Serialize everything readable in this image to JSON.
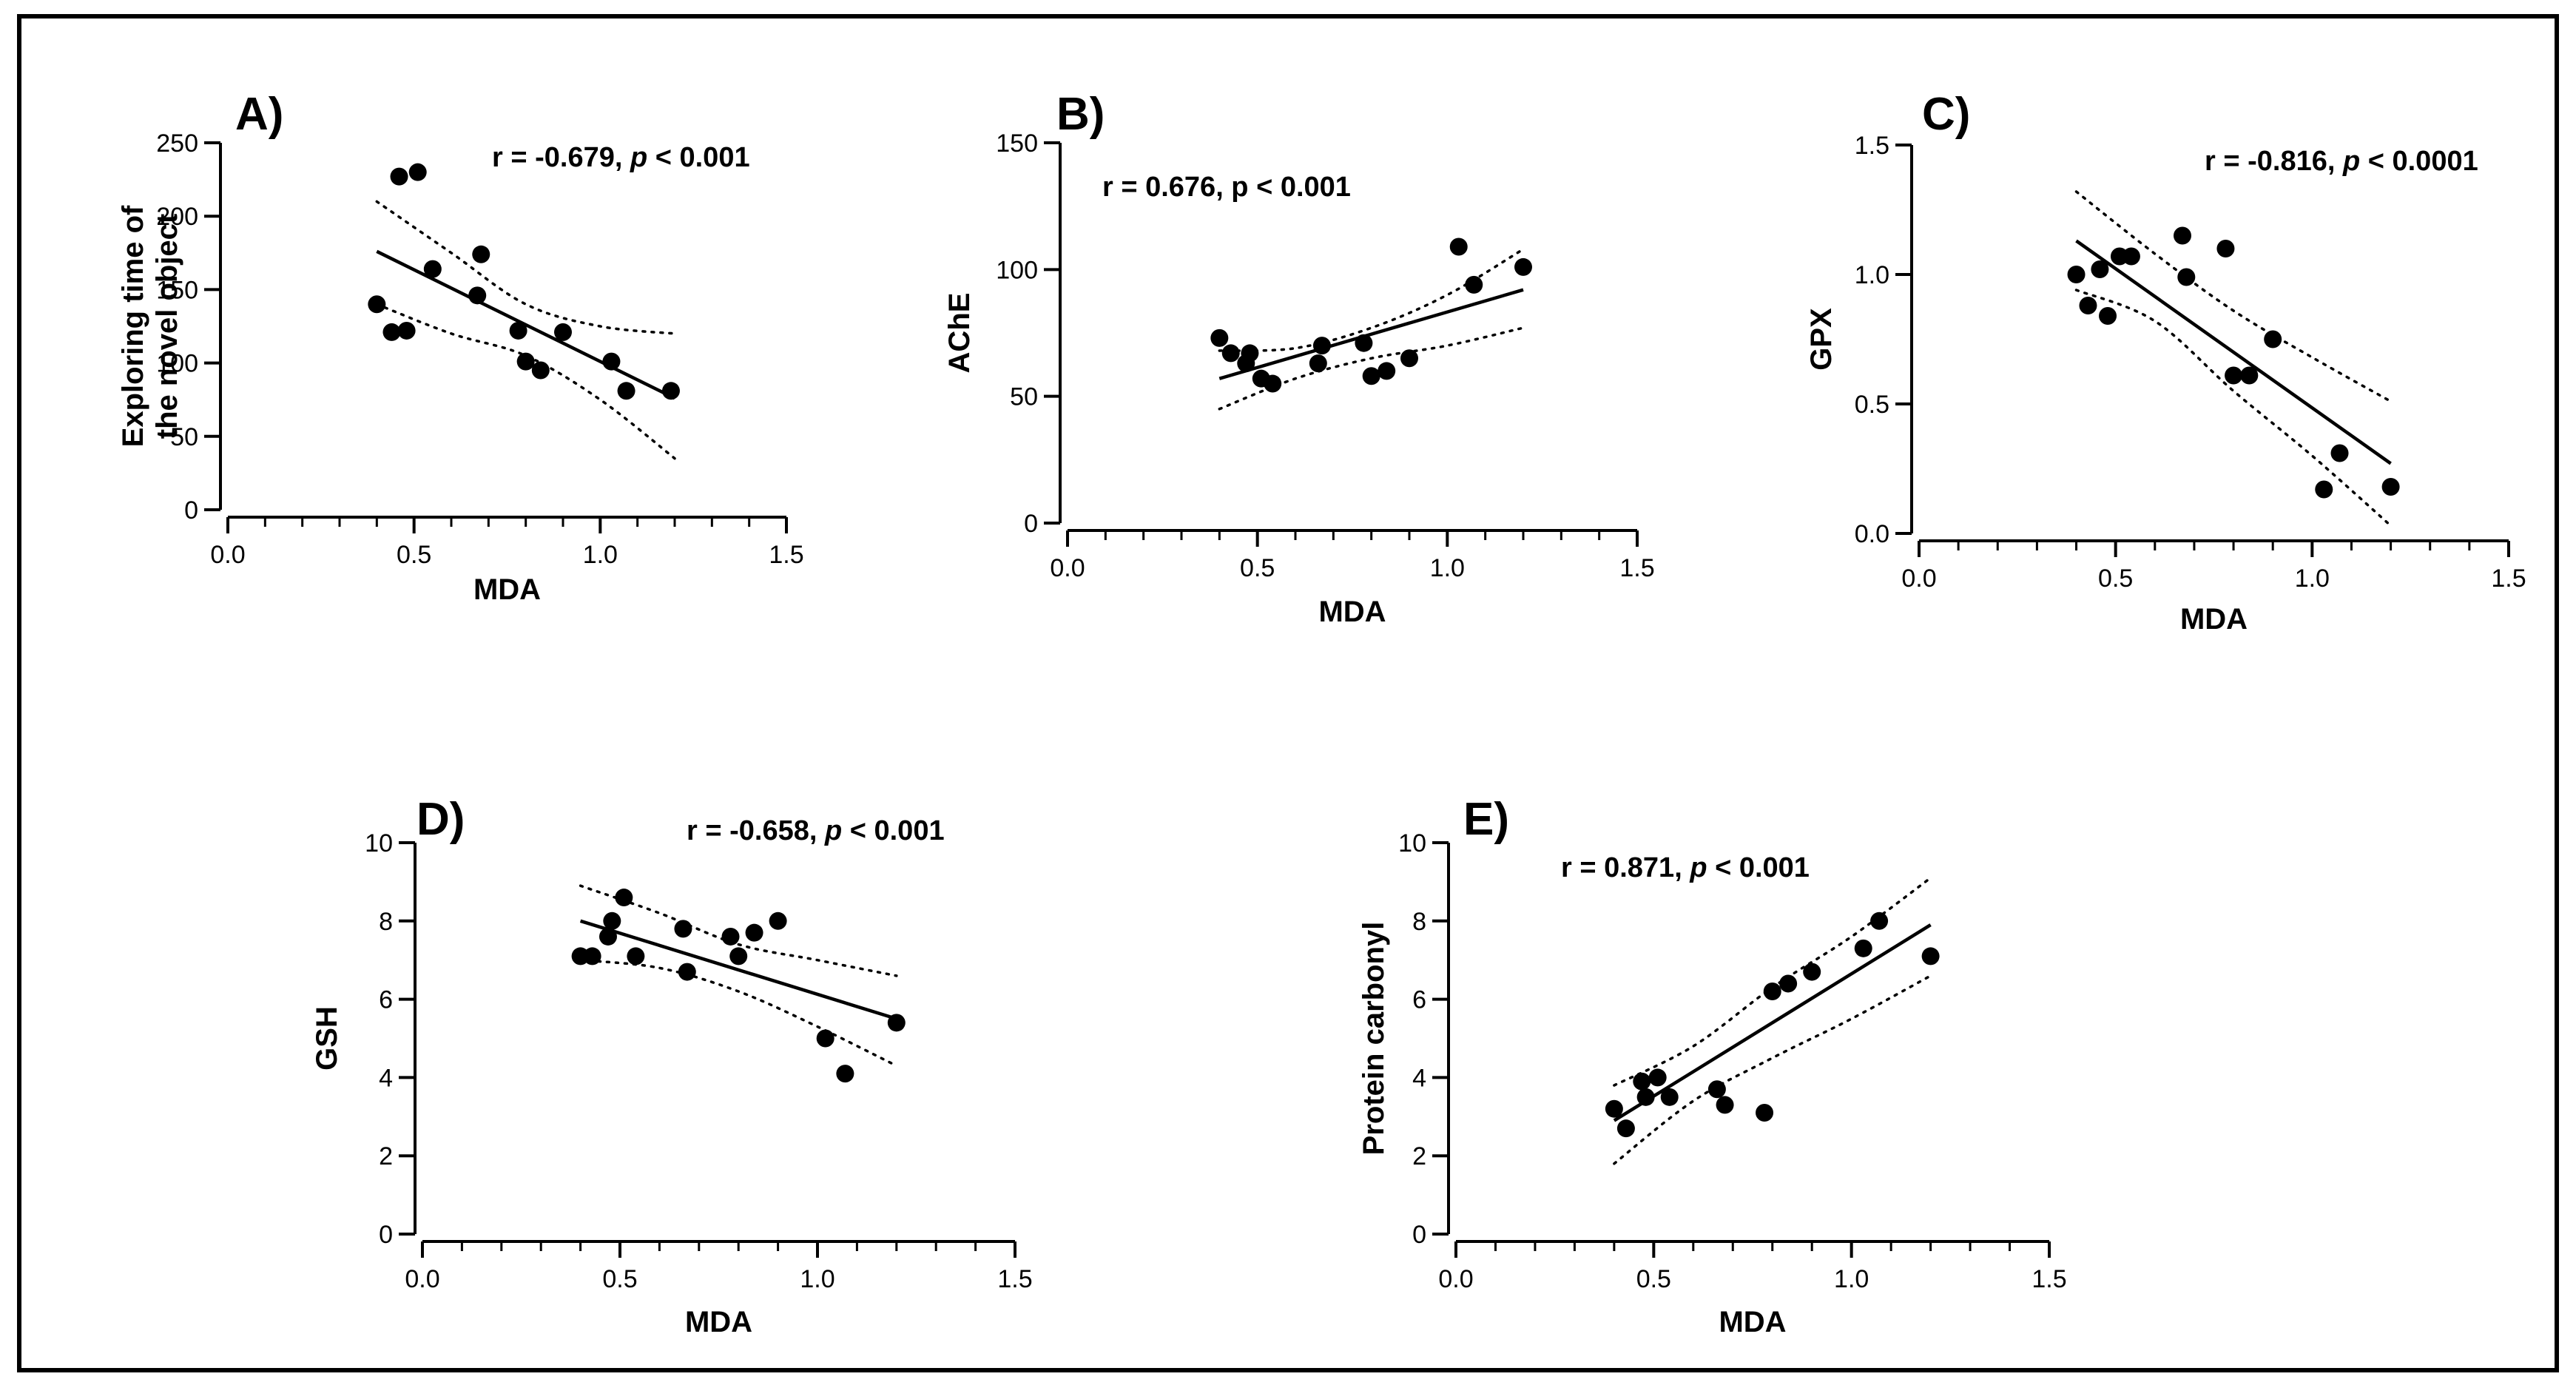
{
  "chart_data": [
    {
      "id": "A",
      "type": "scatter",
      "panel_label": "A)",
      "stat": {
        "prefix": "r = -0.679, ",
        "p_symbol": "p",
        "suffix": " < 0.001"
      },
      "xlabel": "MDA",
      "ylabel": [
        "Exploring time of",
        "the novel object"
      ],
      "xlim": [
        0,
        1.5
      ],
      "ylim": [
        0,
        250
      ],
      "xticks": [
        0,
        0.5,
        1,
        1.5
      ],
      "xtick_labels": [
        "0.0",
        "0.5",
        "1.0",
        "1.5"
      ],
      "yticks": [
        0,
        50,
        100,
        150,
        200,
        250
      ],
      "ytick_labels": [
        "0",
        "50",
        "100",
        "150",
        "200",
        "250"
      ],
      "points": [
        [
          0.4,
          140
        ],
        [
          0.44,
          121
        ],
        [
          0.46,
          227
        ],
        [
          0.48,
          122
        ],
        [
          0.51,
          230
        ],
        [
          0.55,
          164
        ],
        [
          0.67,
          146
        ],
        [
          0.68,
          174
        ],
        [
          0.78,
          122
        ],
        [
          0.8,
          101
        ],
        [
          0.84,
          95
        ],
        [
          0.9,
          121
        ],
        [
          1.03,
          101
        ],
        [
          1.07,
          81
        ],
        [
          1.19,
          81
        ]
      ],
      "fit": [
        [
          0.4,
          176
        ],
        [
          1.2,
          76
        ]
      ],
      "ci_upper": [
        [
          0.4,
          210
        ],
        [
          0.6,
          175
        ],
        [
          0.8,
          140
        ],
        [
          1.0,
          125
        ],
        [
          1.2,
          120
        ]
      ],
      "ci_lower": [
        [
          0.4,
          140
        ],
        [
          0.6,
          120
        ],
        [
          0.8,
          105
        ],
        [
          1.0,
          75
        ],
        [
          1.2,
          35
        ]
      ]
    },
    {
      "id": "B",
      "type": "scatter",
      "panel_label": "B)",
      "stat": {
        "prefix": "r = 0.676, p < 0.001",
        "p_symbol": "",
        "suffix": ""
      },
      "xlabel": "MDA",
      "ylabel": [
        "AChE"
      ],
      "xlim": [
        0,
        1.5
      ],
      "ylim": [
        0,
        150
      ],
      "xticks": [
        0,
        0.5,
        1,
        1.5
      ],
      "xtick_labels": [
        "0.0",
        "0.5",
        "1.0",
        "1.5"
      ],
      "yticks": [
        0,
        50,
        100,
        150
      ],
      "ytick_labels": [
        "0",
        "50",
        "100",
        "150"
      ],
      "points": [
        [
          0.4,
          73
        ],
        [
          0.43,
          67
        ],
        [
          0.47,
          63
        ],
        [
          0.48,
          67
        ],
        [
          0.51,
          57
        ],
        [
          0.54,
          55
        ],
        [
          0.66,
          63
        ],
        [
          0.67,
          70
        ],
        [
          0.78,
          71
        ],
        [
          0.8,
          58
        ],
        [
          0.84,
          60
        ],
        [
          0.9,
          65
        ],
        [
          1.03,
          109
        ],
        [
          1.07,
          94
        ],
        [
          1.2,
          101
        ]
      ],
      "fit": [
        [
          0.4,
          57
        ],
        [
          1.2,
          92
        ]
      ],
      "ci_upper": [
        [
          0.4,
          68
        ],
        [
          0.6,
          69
        ],
        [
          0.8,
          77
        ],
        [
          1.0,
          90
        ],
        [
          1.2,
          108
        ]
      ],
      "ci_lower": [
        [
          0.4,
          45
        ],
        [
          0.6,
          57
        ],
        [
          0.8,
          65
        ],
        [
          1.0,
          70
        ],
        [
          1.2,
          77
        ]
      ]
    },
    {
      "id": "C",
      "type": "scatter",
      "panel_label": "C)",
      "stat": {
        "prefix": "r = -0.816, ",
        "p_symbol": "p",
        "suffix": " < 0.0001"
      },
      "xlabel": "MDA",
      "ylabel": [
        "GPX"
      ],
      "xlim": [
        0,
        1.5
      ],
      "ylim": [
        0,
        1.5
      ],
      "xticks": [
        0,
        0.5,
        1,
        1.5
      ],
      "xtick_labels": [
        "0.0",
        "0.5",
        "1.0",
        "1.5"
      ],
      "yticks": [
        0,
        0.5,
        1,
        1.5
      ],
      "ytick_labels": [
        "0.0",
        "0.5",
        "1.0",
        "1.5"
      ],
      "points": [
        [
          0.4,
          1.0
        ],
        [
          0.43,
          0.88
        ],
        [
          0.46,
          1.02
        ],
        [
          0.48,
          0.84
        ],
        [
          0.51,
          1.07
        ],
        [
          0.54,
          1.07
        ],
        [
          0.67,
          1.15
        ],
        [
          0.68,
          0.99
        ],
        [
          0.78,
          1.1
        ],
        [
          0.8,
          0.61
        ],
        [
          0.84,
          0.61
        ],
        [
          0.9,
          0.75
        ],
        [
          1.03,
          0.17
        ],
        [
          1.07,
          0.31
        ],
        [
          1.2,
          0.18
        ]
      ],
      "fit": [
        [
          0.4,
          1.13
        ],
        [
          1.2,
          0.27
        ]
      ],
      "ci_upper": [
        [
          0.4,
          1.32
        ],
        [
          0.6,
          1.08
        ],
        [
          0.8,
          0.86
        ],
        [
          1.0,
          0.68
        ],
        [
          1.2,
          0.51
        ]
      ],
      "ci_lower": [
        [
          0.4,
          0.94
        ],
        [
          0.6,
          0.82
        ],
        [
          0.8,
          0.55
        ],
        [
          1.0,
          0.3
        ],
        [
          1.2,
          0.03
        ]
      ]
    },
    {
      "id": "D",
      "type": "scatter",
      "panel_label": "D)",
      "stat": {
        "prefix": "r = -0.658, ",
        "p_symbol": "p",
        "suffix": " < 0.001"
      },
      "xlabel": "MDA",
      "ylabel": [
        "GSH"
      ],
      "xlim": [
        0,
        1.5
      ],
      "ylim": [
        0,
        10
      ],
      "xticks": [
        0,
        0.5,
        1,
        1.5
      ],
      "xtick_labels": [
        "0.0",
        "0.5",
        "1.0",
        "1.5"
      ],
      "yticks": [
        0,
        2,
        4,
        6,
        8,
        10
      ],
      "ytick_labels": [
        "0",
        "2",
        "4",
        "6",
        "8",
        "10"
      ],
      "points": [
        [
          0.4,
          7.1
        ],
        [
          0.43,
          7.1
        ],
        [
          0.47,
          7.6
        ],
        [
          0.48,
          8.0
        ],
        [
          0.51,
          8.6
        ],
        [
          0.54,
          7.1
        ],
        [
          0.66,
          7.8
        ],
        [
          0.67,
          6.7
        ],
        [
          0.78,
          7.6
        ],
        [
          0.8,
          7.1
        ],
        [
          0.84,
          7.7
        ],
        [
          0.9,
          8.0
        ],
        [
          1.02,
          5.0
        ],
        [
          1.07,
          4.1
        ],
        [
          1.2,
          5.4
        ]
      ],
      "fit": [
        [
          0.4,
          8.0
        ],
        [
          1.2,
          5.5
        ]
      ],
      "ci_upper": [
        [
          0.4,
          8.9
        ],
        [
          0.6,
          8.2
        ],
        [
          0.8,
          7.4
        ],
        [
          1.0,
          7.0
        ],
        [
          1.2,
          6.6
        ]
      ],
      "ci_lower": [
        [
          0.4,
          7.0
        ],
        [
          0.6,
          6.8
        ],
        [
          0.8,
          6.2
        ],
        [
          1.0,
          5.3
        ],
        [
          1.2,
          4.3
        ]
      ]
    },
    {
      "id": "E",
      "type": "scatter",
      "panel_label": "E)",
      "stat": {
        "prefix": "r = 0.871, ",
        "p_symbol": "p",
        "suffix": " < 0.001"
      },
      "xlabel": "MDA",
      "ylabel": [
        "Protein carbonyl"
      ],
      "xlim": [
        0,
        1.5
      ],
      "ylim": [
        0,
        10
      ],
      "xticks": [
        0,
        0.5,
        1,
        1.5
      ],
      "xtick_labels": [
        "0.0",
        "0.5",
        "1.0",
        "1.5"
      ],
      "yticks": [
        0,
        2,
        4,
        6,
        8,
        10
      ],
      "ytick_labels": [
        "0",
        "2",
        "4",
        "6",
        "8",
        "10"
      ],
      "points": [
        [
          0.4,
          3.2
        ],
        [
          0.43,
          2.7
        ],
        [
          0.47,
          3.9
        ],
        [
          0.48,
          3.5
        ],
        [
          0.51,
          4.0
        ],
        [
          0.54,
          3.5
        ],
        [
          0.66,
          3.7
        ],
        [
          0.68,
          3.3
        ],
        [
          0.78,
          3.1
        ],
        [
          0.8,
          6.2
        ],
        [
          0.84,
          6.4
        ],
        [
          0.9,
          6.7
        ],
        [
          1.03,
          7.3
        ],
        [
          1.07,
          8.0
        ],
        [
          1.2,
          7.1
        ]
      ],
      "fit": [
        [
          0.4,
          2.9
        ],
        [
          1.2,
          7.9
        ]
      ],
      "ci_upper": [
        [
          0.4,
          3.8
        ],
        [
          0.6,
          4.8
        ],
        [
          0.8,
          6.3
        ],
        [
          1.0,
          7.6
        ],
        [
          1.2,
          9.1
        ]
      ],
      "ci_lower": [
        [
          0.4,
          1.8
        ],
        [
          0.6,
          3.4
        ],
        [
          0.8,
          4.5
        ],
        [
          1.0,
          5.5
        ],
        [
          1.2,
          6.6
        ]
      ]
    }
  ]
}
